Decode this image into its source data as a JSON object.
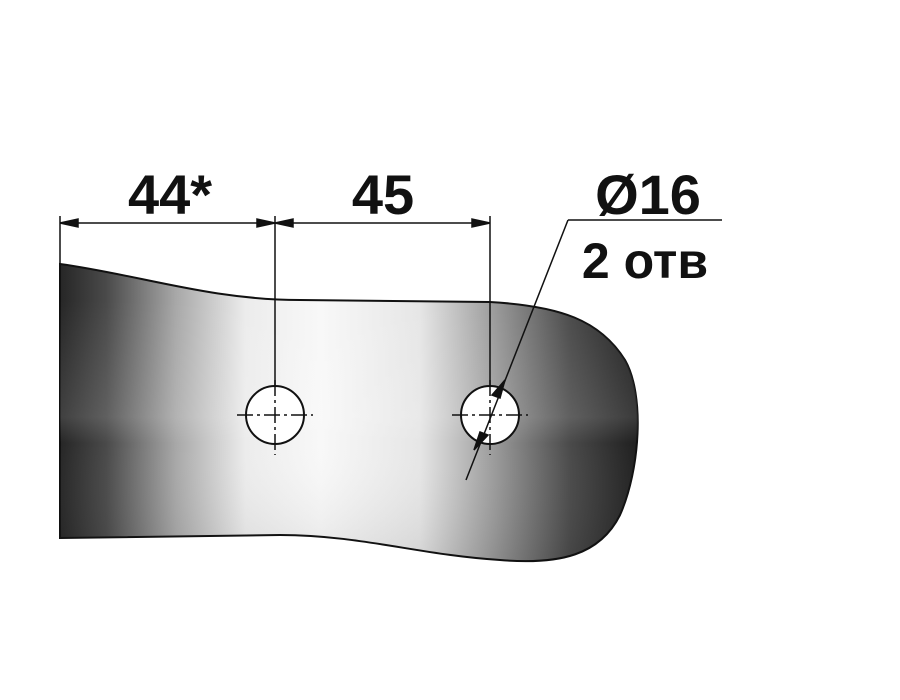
{
  "dimensions": {
    "left_distance": "44*",
    "hole_spacing": "45"
  },
  "hole_callout": {
    "diameter": "Ø16",
    "count": "2 отв"
  },
  "colors": {
    "line": "#111111",
    "part_dark": "#2a2a2a",
    "part_light": "#f4f4f4",
    "hole_fill": "#ffffff",
    "background": "#ffffff"
  }
}
